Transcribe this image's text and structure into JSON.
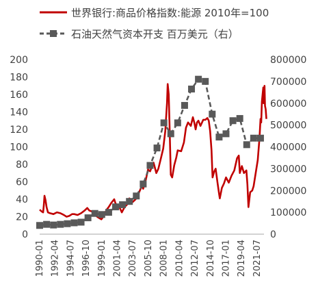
{
  "chart_data": {
    "type": "line",
    "title": "",
    "legend": {
      "placement": "top",
      "entries": [
        {
          "name": "世界银行:商品价格指数:能源 2010年=100",
          "color": "#c00000",
          "style": "solid-line"
        },
        {
          "name": "石油天然气资本开支 百万美元（右）",
          "color": "#595959",
          "style": "dashed-line-square-markers"
        }
      ]
    },
    "y_left": {
      "ylim": [
        0,
        200
      ],
      "ticks": [
        "0",
        "20",
        "40",
        "60",
        "80",
        "100",
        "120",
        "140",
        "160",
        "180",
        "200"
      ]
    },
    "y_right": {
      "ylim": [
        0,
        800000
      ],
      "ticks": [
        "0",
        "100000",
        "200000",
        "300000",
        "400000",
        "500000",
        "600000",
        "700000",
        "800000"
      ]
    },
    "x_axis": {
      "range": [
        1990.0,
        2022.5
      ],
      "tick_labels": [
        "1990-01",
        "1992-04",
        "1994-07",
        "1996-10",
        "1999-01",
        "2001-04",
        "2003-07",
        "2005-10",
        "2008-01",
        "2010-04",
        "2012-07",
        "2014-10",
        "2017-01",
        "2019-04",
        "2021-07"
      ]
    },
    "series": [
      {
        "name": "世界银行:商品价格指数:能源 2010年=100",
        "axis": "left",
        "color": "#c00000",
        "points": [
          [
            1990.0,
            28
          ],
          [
            1990.3,
            26
          ],
          [
            1990.5,
            25
          ],
          [
            1990.6,
            33
          ],
          [
            1990.7,
            44
          ],
          [
            1990.85,
            39
          ],
          [
            1991.0,
            31
          ],
          [
            1991.2,
            25
          ],
          [
            1991.5,
            24
          ],
          [
            1992.0,
            23
          ],
          [
            1992.5,
            25
          ],
          [
            1993.0,
            24
          ],
          [
            1993.5,
            22
          ],
          [
            1993.9,
            20
          ],
          [
            1994.3,
            21
          ],
          [
            1994.7,
            23
          ],
          [
            1995.0,
            23
          ],
          [
            1995.5,
            22
          ],
          [
            1996.0,
            24
          ],
          [
            1996.5,
            27
          ],
          [
            1996.9,
            30
          ],
          [
            1997.2,
            27
          ],
          [
            1997.6,
            26
          ],
          [
            1998.0,
            22
          ],
          [
            1998.5,
            19
          ],
          [
            1998.95,
            17
          ],
          [
            1999.3,
            21
          ],
          [
            1999.7,
            28
          ],
          [
            2000.0,
            31
          ],
          [
            2000.4,
            36
          ],
          [
            2000.8,
            40
          ],
          [
            2001.0,
            35
          ],
          [
            2001.5,
            32
          ],
          [
            2001.9,
            25
          ],
          [
            2002.3,
            31
          ],
          [
            2002.8,
            35
          ],
          [
            2003.0,
            41
          ],
          [
            2003.5,
            37
          ],
          [
            2003.9,
            40
          ],
          [
            2004.3,
            46
          ],
          [
            2004.8,
            55
          ],
          [
            2005.0,
            52
          ],
          [
            2005.4,
            63
          ],
          [
            2005.7,
            74
          ],
          [
            2006.0,
            72
          ],
          [
            2006.5,
            82
          ],
          [
            2006.9,
            70
          ],
          [
            2007.2,
            75
          ],
          [
            2007.6,
            88
          ],
          [
            2007.9,
            98
          ],
          [
            2008.2,
            118
          ],
          [
            2008.45,
            150
          ],
          [
            2008.55,
            172
          ],
          [
            2008.7,
            160
          ],
          [
            2008.85,
            115
          ],
          [
            2009.0,
            68
          ],
          [
            2009.2,
            65
          ],
          [
            2009.5,
            79
          ],
          [
            2009.8,
            88
          ],
          [
            2010.0,
            96
          ],
          [
            2010.5,
            95
          ],
          [
            2010.9,
            105
          ],
          [
            2011.2,
            122
          ],
          [
            2011.5,
            128
          ],
          [
            2011.9,
            124
          ],
          [
            2012.2,
            134
          ],
          [
            2012.4,
            128
          ],
          [
            2012.6,
            120
          ],
          [
            2012.8,
            128
          ],
          [
            2013.0,
            130
          ],
          [
            2013.3,
            124
          ],
          [
            2013.7,
            131
          ],
          [
            2014.0,
            131
          ],
          [
            2014.3,
            133
          ],
          [
            2014.5,
            130
          ],
          [
            2014.7,
            118
          ],
          [
            2014.9,
            96
          ],
          [
            2015.05,
            65
          ],
          [
            2015.3,
            72
          ],
          [
            2015.5,
            75
          ],
          [
            2015.75,
            60
          ],
          [
            2016.0,
            46
          ],
          [
            2016.1,
            41
          ],
          [
            2016.4,
            53
          ],
          [
            2016.7,
            58
          ],
          [
            2017.0,
            65
          ],
          [
            2017.4,
            59
          ],
          [
            2017.8,
            67
          ],
          [
            2018.2,
            73
          ],
          [
            2018.6,
            87
          ],
          [
            2018.85,
            90
          ],
          [
            2019.0,
            70
          ],
          [
            2019.3,
            78
          ],
          [
            2019.6,
            70
          ],
          [
            2019.95,
            73
          ],
          [
            2020.1,
            57
          ],
          [
            2020.25,
            31
          ],
          [
            2020.35,
            38
          ],
          [
            2020.5,
            48
          ],
          [
            2020.8,
            50
          ],
          [
            2021.0,
            55
          ],
          [
            2021.3,
            70
          ],
          [
            2021.6,
            85
          ],
          [
            2021.85,
            110
          ],
          [
            2022.0,
            132
          ],
          [
            2022.1,
            128
          ],
          [
            2022.2,
            152
          ],
          [
            2022.3,
            160
          ],
          [
            2022.4,
            168
          ],
          [
            2022.45,
            150
          ],
          [
            2022.5,
            155
          ],
          [
            2022.58,
            170
          ],
          [
            2022.65,
            147
          ],
          [
            2022.75,
            143
          ],
          [
            2022.85,
            132
          ]
        ]
      },
      {
        "name": "石油天然气资本开支 百万美元（右）",
        "axis": "right",
        "color": "#595959",
        "points": [
          [
            1990.0,
            40000
          ],
          [
            1991.0,
            45000
          ],
          [
            1992.0,
            42000
          ],
          [
            1993.0,
            45000
          ],
          [
            1994.0,
            48000
          ],
          [
            1995.0,
            52000
          ],
          [
            1996.0,
            55000
          ],
          [
            1997.0,
            75000
          ],
          [
            1998.0,
            95000
          ],
          [
            1999.0,
            90000
          ],
          [
            2000.0,
            100000
          ],
          [
            2001.0,
            125000
          ],
          [
            2002.0,
            135000
          ],
          [
            2003.0,
            150000
          ],
          [
            2004.0,
            175000
          ],
          [
            2005.0,
            230000
          ],
          [
            2006.0,
            315000
          ],
          [
            2007.0,
            395000
          ],
          [
            2008.0,
            510000
          ],
          [
            2009.0,
            460000
          ],
          [
            2010.0,
            510000
          ],
          [
            2011.0,
            590000
          ],
          [
            2012.0,
            665000
          ],
          [
            2013.0,
            710000
          ],
          [
            2014.0,
            700000
          ],
          [
            2015.0,
            550000
          ],
          [
            2016.0,
            445000
          ],
          [
            2017.0,
            460000
          ],
          [
            2018.0,
            520000
          ],
          [
            2019.0,
            530000
          ],
          [
            2020.0,
            410000
          ],
          [
            2021.0,
            440000
          ],
          [
            2022.0,
            440000
          ]
        ]
      }
    ]
  }
}
